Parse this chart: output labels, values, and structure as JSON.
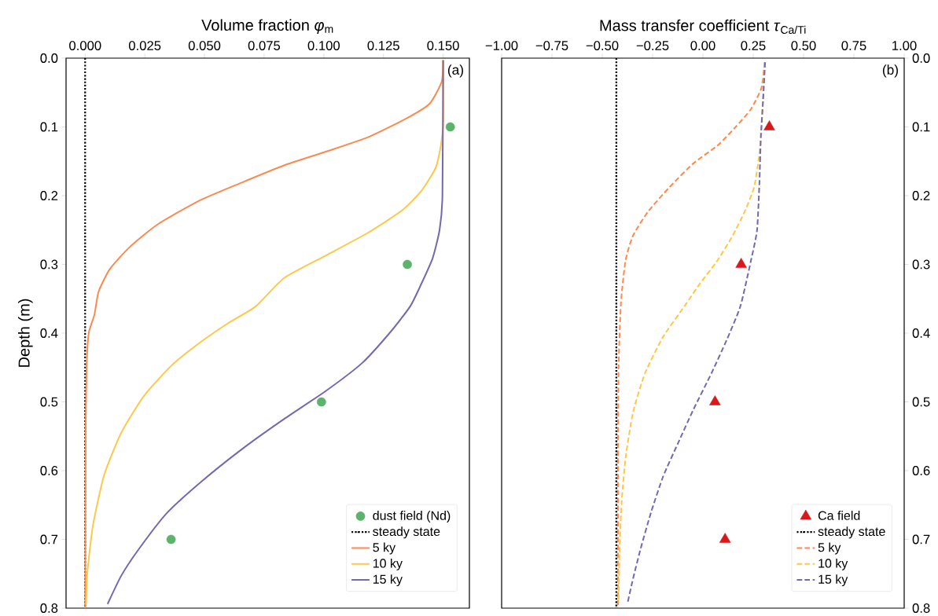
{
  "chart_data": [
    {
      "type": "line",
      "xlabel": "Volume fraction *φ*$_{m}$",
      "ylabel": "Depth (m)",
      "xlim": [
        -0.008,
        0.161
      ],
      "ylim": [
        0.8,
        0.0
      ],
      "xticks": [
        {
          "value": 0,
          "label": "0.000"
        },
        {
          "value": 0.025,
          "label": "0.025"
        },
        {
          "value": 0.05,
          "label": "0.050"
        },
        {
          "value": 0.075,
          "label": "0.075"
        },
        {
          "value": 0.1,
          "label": "0.100"
        },
        {
          "value": 0.125,
          "label": "0.125"
        },
        {
          "value": 0.15,
          "label": "0.150"
        }
      ],
      "yticks": [
        {
          "value": 0,
          "label": "0.0"
        },
        {
          "value": 0.1,
          "label": "0.1"
        },
        {
          "value": 0.2,
          "label": "0.2"
        },
        {
          "value": 0.3,
          "label": "0.3"
        },
        {
          "value": 0.4,
          "label": "0.4"
        },
        {
          "value": 0.5,
          "label": "0.5"
        },
        {
          "value": 0.6,
          "label": "0.6"
        },
        {
          "value": 0.7,
          "label": "0.7"
        },
        {
          "value": 0.8,
          "label": "0.8"
        }
      ],
      "legend": "bottom right",
      "annotations": [
        "(a)"
      ],
      "series": [
        {
          "name": "dust field (Nd)",
          "type": "scatter",
          "marker": "circle",
          "color": "#5cb36c",
          "x": [
            0.153,
            0.135,
            0.099,
            0.036
          ],
          "values": [
            0.1,
            0.3,
            0.5,
            0.7
          ]
        },
        {
          "name": "steady state",
          "line_style": "dotted",
          "color": "#000000",
          "x": [
            0,
            0
          ],
          "values": [
            0.0,
            0.8
          ]
        },
        {
          "name": "5 ky",
          "line_style": "solid",
          "color": "#fb8a50",
          "x": [
            0.15,
            0.1494,
            0.1444,
            0.135,
            0.1185,
            0.1009,
            0.0833,
            0.0656,
            0.048,
            0.0303,
            0.0186,
            0.0103,
            0.0056,
            0.0039,
            0.0015,
            0.0006,
            0.0002,
            0.0
          ],
          "values": [
            0.003,
            0.034,
            0.066,
            0.087,
            0.115,
            0.136,
            0.156,
            0.181,
            0.207,
            0.242,
            0.275,
            0.307,
            0.34,
            0.373,
            0.4,
            0.45,
            0.55,
            0.8
          ]
        },
        {
          "name": "10 ky",
          "line_style": "solid",
          "color": "#fdc84a",
          "x": [
            0.15,
            0.15,
            0.149,
            0.1468,
            0.1409,
            0.1326,
            0.1185,
            0.1009,
            0.0833,
            0.0715,
            0.0597,
            0.048,
            0.0362,
            0.0245,
            0.0151,
            0.008,
            0.0033,
            0.0009,
            0.0004
          ],
          "values": [
            0.003,
            0.095,
            0.128,
            0.16,
            0.193,
            0.222,
            0.254,
            0.287,
            0.32,
            0.361,
            0.386,
            0.414,
            0.447,
            0.492,
            0.545,
            0.606,
            0.679,
            0.749,
            0.794
          ]
        },
        {
          "name": "15 ky",
          "line_style": "solid",
          "color": "#7468b0",
          "x": [
            0.15,
            0.1497,
            0.1485,
            0.1456,
            0.1409,
            0.1362,
            0.128,
            0.1162,
            0.1009,
            0.0833,
            0.0656,
            0.048,
            0.0339,
            0.0221,
            0.0151,
            0.0094
          ],
          "values": [
            0.003,
            0.201,
            0.25,
            0.291,
            0.328,
            0.361,
            0.398,
            0.443,
            0.484,
            0.525,
            0.569,
            0.618,
            0.663,
            0.716,
            0.753,
            0.794
          ]
        }
      ]
    },
    {
      "type": "line",
      "xlabel": "Mass transfer coefficient *τ*$_{Ca/Ti}$",
      "xlim": [
        -1.0,
        1.0
      ],
      "ylim": [
        0.8,
        0.0
      ],
      "xticks": [
        {
          "value": -1,
          "label": "−1.00"
        },
        {
          "value": -0.75,
          "label": "−0.75"
        },
        {
          "value": -0.5,
          "label": "−0.50"
        },
        {
          "value": -0.25,
          "label": "−0.25"
        },
        {
          "value": 0,
          "label": "0.00"
        },
        {
          "value": 0.25,
          "label": "0.25"
        },
        {
          "value": 0.5,
          "label": "0.50"
        },
        {
          "value": 0.75,
          "label": "0.75"
        },
        {
          "value": 1,
          "label": "1.00"
        }
      ],
      "yticks": [
        {
          "value": 0,
          "label": "0.0"
        },
        {
          "value": 0.1,
          "label": "0.1"
        },
        {
          "value": 0.2,
          "label": "0.2"
        },
        {
          "value": 0.3,
          "label": "0.3"
        },
        {
          "value": 0.4,
          "label": "0.4"
        },
        {
          "value": 0.5,
          "label": "0.5"
        },
        {
          "value": 0.6,
          "label": "0.6"
        },
        {
          "value": 0.7,
          "label": "0.7"
        },
        {
          "value": 0.8,
          "label": "0.8"
        }
      ],
      "legend": "bottom right",
      "annotations": [
        "(b)"
      ],
      "series": [
        {
          "name": "Ca field",
          "type": "scatter",
          "marker": "triangle",
          "color": "#d7191c",
          "x": [
            0.33,
            0.19,
            0.06,
            0.11
          ],
          "values": [
            0.1,
            0.3,
            0.5,
            0.7
          ]
        },
        {
          "name": "steady state",
          "line_style": "dotted",
          "color": "#000000",
          "x": [
            -0.43,
            -0.43
          ],
          "values": [
            0.0,
            0.8
          ]
        },
        {
          "name": "5 ky",
          "line_style": "dashed",
          "color": "#fb8a50",
          "x": [
            0.306,
            0.291,
            0.239,
            0.163,
            0.073,
            -0.047,
            -0.167,
            -0.272,
            -0.347,
            -0.384,
            -0.407,
            -0.419,
            -0.422,
            -0.422
          ],
          "values": [
            0.006,
            0.043,
            0.074,
            0.1,
            0.127,
            0.153,
            0.188,
            0.223,
            0.258,
            0.294,
            0.355,
            0.449,
            0.581,
            0.797
          ]
        },
        {
          "name": "10 ky",
          "line_style": "dashed",
          "color": "#fdc84a",
          "x": [
            0.306,
            0.291,
            0.276,
            0.254,
            0.208,
            0.148,
            0.073,
            -0.017,
            -0.092,
            -0.197,
            -0.287,
            -0.347,
            -0.384,
            -0.404,
            -0.414,
            -0.419
          ],
          "values": [
            0.006,
            0.105,
            0.149,
            0.188,
            0.223,
            0.258,
            0.294,
            0.329,
            0.361,
            0.405,
            0.458,
            0.515,
            0.581,
            0.647,
            0.713,
            0.792
          ]
        },
        {
          "name": "15 ky",
          "line_style": "dashed",
          "color": "#7468b0",
          "x": [
            0.309,
            0.299,
            0.288,
            0.281,
            0.269,
            0.239,
            0.186,
            0.118,
            0.043,
            -0.047,
            -0.122,
            -0.197,
            -0.257,
            -0.309,
            -0.347,
            -0.374
          ],
          "values": [
            0.006,
            0.061,
            0.113,
            0.179,
            0.25,
            0.294,
            0.361,
            0.41,
            0.458,
            0.511,
            0.559,
            0.608,
            0.66,
            0.713,
            0.757,
            0.792
          ]
        }
      ]
    }
  ]
}
